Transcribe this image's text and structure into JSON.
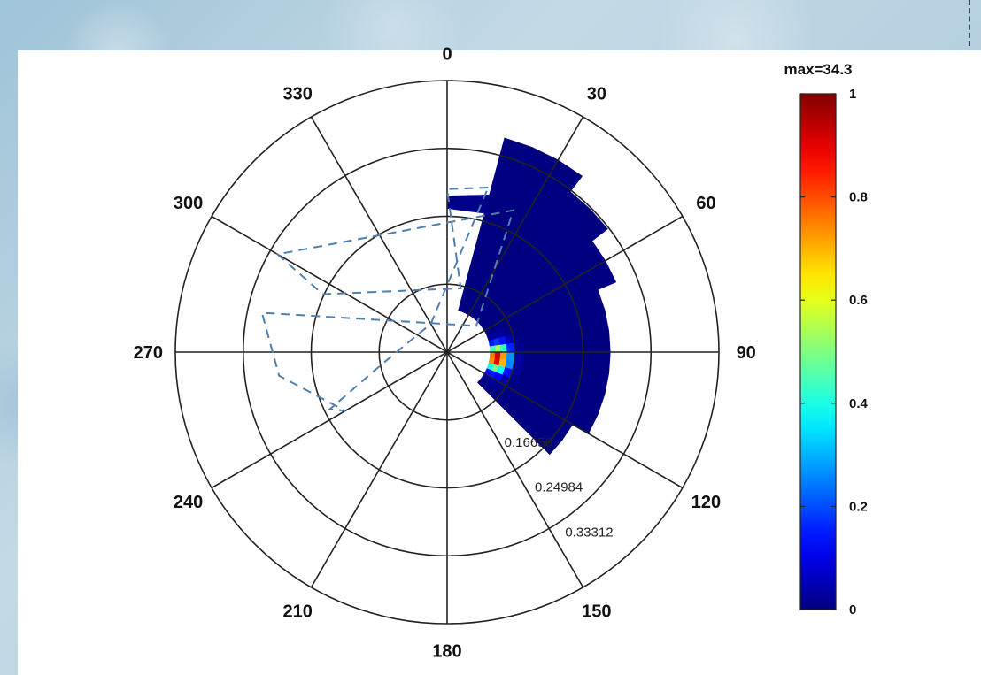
{
  "chart_data": {
    "type": "heatmap",
    "subtype": "polar",
    "title": "",
    "angle_labels": [
      "0",
      "30",
      "60",
      "90",
      "120",
      "150",
      "180",
      "210",
      "240",
      "270",
      "300",
      "330"
    ],
    "angle_direction": "clockwise-from-top",
    "radial_tick_labels": [
      "0.16656",
      "0.24984",
      "0.33312"
    ],
    "radial_max": 0.4164,
    "grid": true,
    "colormap": "jet",
    "colorbar": {
      "title": "max=34.3",
      "range": [
        0,
        1
      ],
      "tick_labels": [
        "0",
        "0.2",
        "0.4",
        "0.6",
        "0.8",
        "1"
      ],
      "placement": "right"
    },
    "theta_bins_deg": [
      15,
      22.5,
      30,
      37.5,
      45,
      52.5,
      60,
      67.5,
      75,
      82.5,
      90,
      97.5,
      105,
      112.5,
      120,
      127.5,
      135
    ],
    "radial_bins": [
      0.066,
      0.074,
      0.082,
      0.092,
      0.104,
      0.118,
      0.134,
      0.152,
      0.172,
      0.196,
      0.222,
      0.25,
      0.28,
      0.31,
      0.34
    ],
    "peak": {
      "theta_deg": 97,
      "r": 0.078,
      "value": 1.0
    },
    "outer_extent_r": [
      0.34,
      0.34,
      0.33,
      0.32,
      0.3,
      0.29,
      0.27,
      0.26,
      0.255,
      0.255,
      0.255,
      0.25,
      0.245,
      0.24,
      0.235,
      0.23
    ],
    "overlay": {
      "style": "dashed",
      "color": "#4f7fb0",
      "polygon_theta_r": [
        [
          14,
          0.26
        ],
        [
          0,
          0.25
        ],
        [
          12,
          0.1
        ],
        [
          295,
          0.21
        ],
        [
          300,
          0.3
        ],
        [
          25,
          0.24
        ],
        [
          48,
          0.06
        ],
        [
          282,
          0.29
        ],
        [
          262,
          0.26
        ],
        [
          240,
          0.18
        ],
        [
          244,
          0.2
        ],
        [
          260,
          0.1
        ],
        [
          330,
          0.05
        ],
        [
          14,
          0.26
        ]
      ]
    }
  }
}
